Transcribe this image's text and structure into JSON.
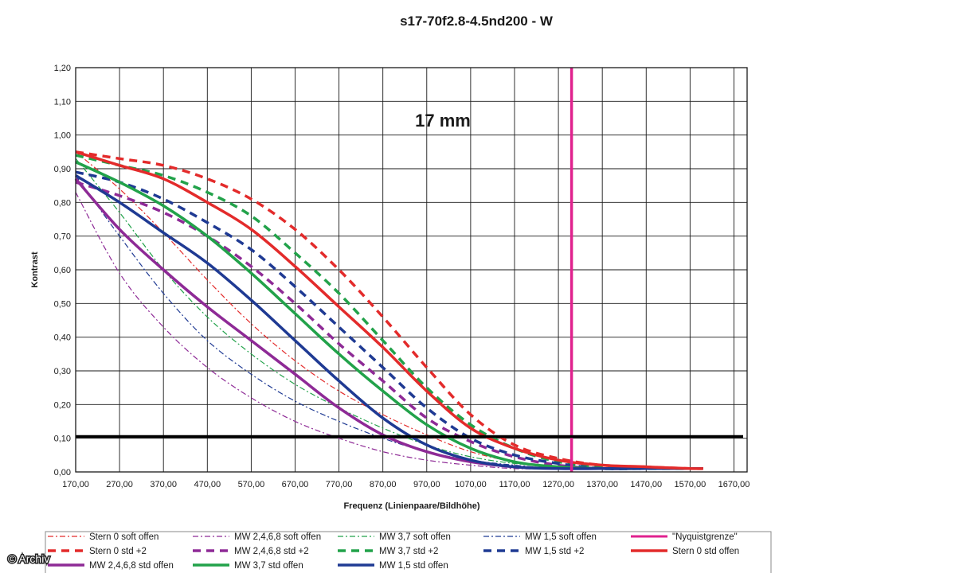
{
  "chart_data": {
    "type": "line",
    "title": "s17-70f2.8-4.5nd200 - W",
    "annotation": "17 mm",
    "xlabel": "Frequenz (Linienpaare/Bildhöhe)",
    "ylabel": "Kontrast",
    "xlim": [
      170,
      1700
    ],
    "ylim": [
      0,
      1.2
    ],
    "x_ticks": [
      "170,00",
      "270,00",
      "370,00",
      "470,00",
      "570,00",
      "670,00",
      "770,00",
      "870,00",
      "970,00",
      "1070,00",
      "1170,00",
      "1270,00",
      "1370,00",
      "1470,00",
      "1570,00",
      "1670,00"
    ],
    "y_ticks": [
      "0,00",
      "0,10",
      "0,20",
      "0,30",
      "0,40",
      "0,50",
      "0,60",
      "0,70",
      "0,80",
      "0,90",
      "1,00",
      "1,10",
      "1,20"
    ],
    "grid": true,
    "legend_position": "bottom",
    "reference_lines": [
      {
        "name": "\"Nyquistgrenze\"",
        "orientation": "vertical",
        "value": 1300,
        "color": "#e0228e"
      },
      {
        "orientation": "horizontal",
        "value": 0.105,
        "color": "#000000"
      }
    ],
    "series": [
      {
        "name": "Stern 0 soft offen",
        "color": "#e32b2b",
        "style": "dashdot",
        "width": 1.2,
        "x": [
          170,
          270,
          370,
          470,
          570,
          670,
          770,
          870,
          970,
          1070,
          1170,
          1270,
          1370,
          1470,
          1570,
          1600
        ],
        "y": [
          0.95,
          0.84,
          0.71,
          0.57,
          0.44,
          0.33,
          0.24,
          0.17,
          0.11,
          0.06,
          0.03,
          0.015,
          0.01,
          0.01,
          0.01,
          0.01
        ]
      },
      {
        "name": "MW 2,4,6,8 soft offen",
        "color": "#8e2a96",
        "style": "dashdot",
        "width": 1.2,
        "x": [
          170,
          270,
          370,
          470,
          570,
          670,
          770,
          870,
          970,
          1070,
          1170,
          1270,
          1370,
          1470,
          1570,
          1600
        ],
        "y": [
          0.83,
          0.59,
          0.43,
          0.31,
          0.22,
          0.15,
          0.1,
          0.06,
          0.035,
          0.02,
          0.01,
          0.01,
          0.01,
          0.01,
          0.01,
          0.01
        ]
      },
      {
        "name": "MW 3,7 soft offen",
        "color": "#22a24a",
        "style": "dashdot",
        "width": 1.2,
        "x": [
          170,
          270,
          370,
          470,
          570,
          670,
          770,
          870,
          970,
          1070,
          1170,
          1270,
          1370,
          1470,
          1570,
          1600
        ],
        "y": [
          0.93,
          0.77,
          0.6,
          0.46,
          0.35,
          0.26,
          0.19,
          0.13,
          0.08,
          0.045,
          0.025,
          0.015,
          0.01,
          0.01,
          0.01,
          0.01
        ]
      },
      {
        "name": "MW 1,5 soft offen",
        "color": "#1f3a93",
        "style": "dashdot",
        "width": 1.2,
        "x": [
          170,
          270,
          370,
          470,
          570,
          670,
          770,
          870,
          970,
          1070,
          1170,
          1270,
          1370,
          1470,
          1570,
          1600
        ],
        "y": [
          0.88,
          0.7,
          0.53,
          0.39,
          0.29,
          0.21,
          0.15,
          0.1,
          0.06,
          0.035,
          0.02,
          0.01,
          0.01,
          0.01,
          0.01,
          0.01
        ]
      },
      {
        "name": "\"Nyquistgrenze\"",
        "color": "#e0228e",
        "style": "solid",
        "width": 3,
        "x": [],
        "y": []
      },
      {
        "name": "Stern 0 std +2",
        "color": "#e32b2b",
        "style": "dash",
        "width": 3.5,
        "x": [
          170,
          270,
          370,
          470,
          570,
          670,
          770,
          870,
          970,
          1070,
          1170,
          1270,
          1370,
          1470,
          1570,
          1600
        ],
        "y": [
          0.95,
          0.93,
          0.91,
          0.87,
          0.81,
          0.72,
          0.6,
          0.46,
          0.31,
          0.17,
          0.08,
          0.04,
          0.02,
          0.015,
          0.01,
          0.01
        ]
      },
      {
        "name": "MW 2,4,6,8 std +2",
        "color": "#8e2a96",
        "style": "dash",
        "width": 3.5,
        "x": [
          170,
          270,
          370,
          470,
          570,
          670,
          770,
          870,
          970,
          1070,
          1170,
          1270,
          1370,
          1470,
          1570,
          1600
        ],
        "y": [
          0.86,
          0.82,
          0.77,
          0.7,
          0.61,
          0.5,
          0.38,
          0.27,
          0.16,
          0.09,
          0.045,
          0.02,
          0.01,
          0.01,
          0.01,
          0.01
        ]
      },
      {
        "name": "MW 3,7 std +2",
        "color": "#22a24a",
        "style": "dash",
        "width": 3.5,
        "x": [
          170,
          270,
          370,
          470,
          570,
          670,
          770,
          870,
          970,
          1070,
          1170,
          1270,
          1370,
          1470,
          1570,
          1600
        ],
        "y": [
          0.94,
          0.91,
          0.88,
          0.83,
          0.76,
          0.65,
          0.53,
          0.39,
          0.25,
          0.14,
          0.07,
          0.03,
          0.015,
          0.01,
          0.01,
          0.01
        ]
      },
      {
        "name": "MW 1,5 std +2",
        "color": "#1f3a93",
        "style": "dash",
        "width": 3.5,
        "x": [
          170,
          270,
          370,
          470,
          570,
          670,
          770,
          870,
          970,
          1070,
          1170,
          1270,
          1370,
          1470,
          1570,
          1600
        ],
        "y": [
          0.89,
          0.86,
          0.81,
          0.74,
          0.66,
          0.55,
          0.43,
          0.31,
          0.19,
          0.1,
          0.05,
          0.025,
          0.01,
          0.01,
          0.01,
          0.01
        ]
      },
      {
        "name": "Stern 0 std offen",
        "color": "#e32b2b",
        "style": "solid",
        "width": 3.5,
        "x": [
          170,
          270,
          370,
          470,
          570,
          670,
          770,
          870,
          970,
          1070,
          1170,
          1270,
          1370,
          1470,
          1570,
          1600
        ],
        "y": [
          0.95,
          0.91,
          0.87,
          0.8,
          0.72,
          0.61,
          0.49,
          0.37,
          0.24,
          0.13,
          0.07,
          0.035,
          0.02,
          0.015,
          0.01,
          0.01
        ]
      },
      {
        "name": "MW 2,4,6,8 std offen",
        "color": "#8e2a96",
        "style": "solid",
        "width": 3.5,
        "x": [
          170,
          270,
          370,
          470,
          570,
          670,
          770,
          870,
          970,
          1070,
          1170,
          1270,
          1370,
          1470,
          1570,
          1600
        ],
        "y": [
          0.87,
          0.72,
          0.6,
          0.49,
          0.39,
          0.29,
          0.19,
          0.11,
          0.06,
          0.03,
          0.015,
          0.01,
          0.01,
          0.01,
          0.01,
          0.01
        ]
      },
      {
        "name": "MW 3,7 std offen",
        "color": "#22a24a",
        "style": "solid",
        "width": 3.5,
        "x": [
          170,
          270,
          370,
          470,
          570,
          670,
          770,
          870,
          970,
          1070,
          1170,
          1270,
          1370,
          1470,
          1570,
          1600
        ],
        "y": [
          0.92,
          0.86,
          0.79,
          0.7,
          0.59,
          0.47,
          0.35,
          0.24,
          0.14,
          0.07,
          0.03,
          0.015,
          0.01,
          0.01,
          0.01,
          0.01
        ]
      },
      {
        "name": "MW 1,5 std offen",
        "color": "#1f3a93",
        "style": "solid",
        "width": 3.5,
        "x": [
          170,
          270,
          370,
          470,
          570,
          670,
          770,
          870,
          970,
          1070,
          1170,
          1270,
          1370,
          1470,
          1570,
          1600
        ],
        "y": [
          0.88,
          0.8,
          0.71,
          0.62,
          0.51,
          0.39,
          0.27,
          0.16,
          0.08,
          0.035,
          0.015,
          0.01,
          0.01,
          0.01,
          0.01,
          0.01
        ]
      }
    ]
  },
  "watermark": "© Archiv"
}
